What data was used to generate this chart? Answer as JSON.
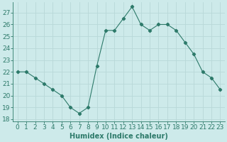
{
  "x": [
    0,
    1,
    2,
    3,
    4,
    5,
    6,
    7,
    8,
    9,
    10,
    11,
    12,
    13,
    14,
    15,
    16,
    17,
    18,
    19,
    20,
    21,
    22,
    23
  ],
  "y": [
    22,
    22,
    21.5,
    21,
    20.5,
    20,
    19,
    18.5,
    19,
    22.5,
    25.5,
    25.5,
    26.5,
    27.5,
    26,
    25.5,
    26,
    26,
    25.5,
    24.5,
    23.5,
    22,
    21.5,
    20.5
  ],
  "line_color": "#2d7a6a",
  "marker": "D",
  "marker_size": 2.2,
  "bg_color": "#cdeaea",
  "grid_color": "#b8d8d8",
  "ylabel_ticks": [
    18,
    19,
    20,
    21,
    22,
    23,
    24,
    25,
    26,
    27
  ],
  "ylim": [
    17.8,
    27.9
  ],
  "xlim": [
    -0.5,
    23.5
  ],
  "xlabel": "Humidex (Indice chaleur)",
  "xlabel_fontsize": 7,
  "tick_fontsize": 6.5
}
